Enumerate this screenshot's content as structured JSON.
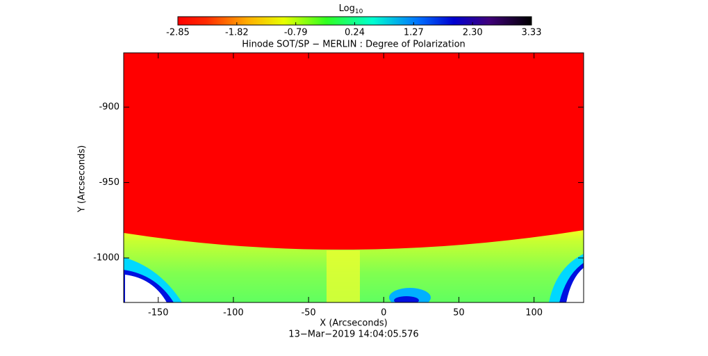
{
  "chart_data": {
    "type": "image",
    "title": "Hinode SOT/SP − MERLIN : Degree of Polarization",
    "xlabel": "X (Arcseconds)",
    "ylabel": "Y (Arcseconds)",
    "footer": "13−Mar−2019 14:04:05.576",
    "colorbar_title": "Log",
    "colorbar_title_subscript": "10",
    "clim": [
      -2.85,
      3.33
    ],
    "cticks": [
      -2.85,
      -1.82,
      -0.79,
      0.24,
      1.27,
      {
        "value": 2.3,
        "label": "2.30"
      },
      3.33
    ],
    "xlim": [
      -173,
      133
    ],
    "xticks": [
      -150,
      -100,
      -50,
      0,
      50,
      100
    ],
    "ylim": [
      -1029.5,
      -864
    ],
    "yticks": [
      -900,
      -950,
      -1000
    ]
  }
}
